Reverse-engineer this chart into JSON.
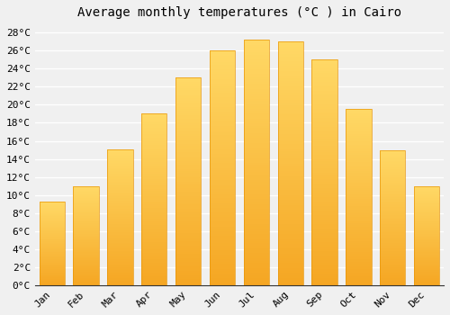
{
  "title": "Average monthly temperatures (°C ) in Cairo",
  "months": [
    "Jan",
    "Feb",
    "Mar",
    "Apr",
    "May",
    "Jun",
    "Jul",
    "Aug",
    "Sep",
    "Oct",
    "Nov",
    "Dec"
  ],
  "values": [
    9.3,
    11.0,
    15.1,
    19.0,
    23.0,
    26.0,
    27.2,
    27.0,
    25.0,
    19.5,
    15.0,
    11.0
  ],
  "bar_color_bottom": "#F5A623",
  "bar_color_top": "#FFD966",
  "bar_edge_color": "#E8960A",
  "background_color": "#f0f0f0",
  "grid_color": "#ffffff",
  "ylim": [
    0,
    29
  ],
  "yticks": [
    0,
    2,
    4,
    6,
    8,
    10,
    12,
    14,
    16,
    18,
    20,
    22,
    24,
    26,
    28
  ],
  "title_fontsize": 10,
  "tick_fontsize": 8,
  "font_family": "monospace"
}
